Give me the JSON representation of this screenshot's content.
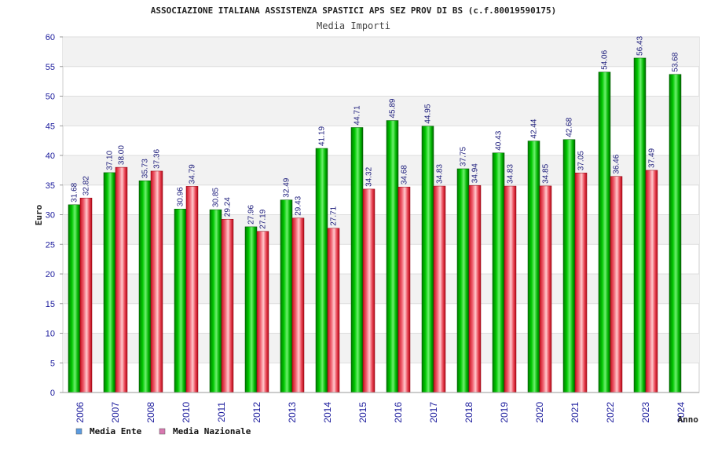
{
  "chart_data": {
    "type": "bar",
    "title": "ASSOCIAZIONE ITALIANA ASSISTENZA SPASTICI APS SEZ PROV DI BS (c.f.80019590175)",
    "subtitle": "Media Importi",
    "xlabel": "Anno",
    "ylabel": "Euro",
    "ylim": [
      0,
      60
    ],
    "yticks": [
      0,
      5,
      10,
      15,
      20,
      25,
      30,
      35,
      40,
      45,
      50,
      55,
      60
    ],
    "grid": true,
    "legend_position": "bottom-left",
    "categories": [
      "2006",
      "2007",
      "2008",
      "2010",
      "2011",
      "2012",
      "2013",
      "2014",
      "2015",
      "2016",
      "2017",
      "2018",
      "2019",
      "2020",
      "2021",
      "2022",
      "2023",
      "2024"
    ],
    "series": [
      {
        "name": "Media Ente",
        "color": "#00b000",
        "legend_color": "#5b9be0",
        "values": [
          31.68,
          37.1,
          35.73,
          30.96,
          30.85,
          27.96,
          32.49,
          41.19,
          44.71,
          45.89,
          44.95,
          37.75,
          40.43,
          42.44,
          42.68,
          54.06,
          56.43,
          53.68
        ],
        "labels": [
          "31.68",
          "37.10",
          "35.73",
          "30.96",
          "30.85",
          "27.96",
          "32.49",
          "41.19",
          "44.71",
          "45.89",
          "44.95",
          "37.75",
          "40.43",
          "42.44",
          "42.68",
          "54.06",
          "56.43",
          "53.68"
        ]
      },
      {
        "name": "Media Nazionale",
        "color": "#e8283c",
        "legend_color": "#d878b0",
        "values": [
          32.82,
          38.0,
          37.36,
          34.79,
          29.24,
          27.19,
          29.43,
          27.71,
          34.32,
          34.68,
          34.83,
          34.94,
          34.83,
          34.85,
          37.05,
          36.46,
          37.49,
          null
        ],
        "labels": [
          "32.82",
          "38.00",
          "37.36",
          "34.79",
          "29.24",
          "27.19",
          "29.43",
          "27.71",
          "34.32",
          "34.68",
          "34.83",
          "34.94",
          "34.83",
          "34.85",
          "37.05",
          "36.46",
          "37.49",
          null
        ]
      }
    ]
  }
}
